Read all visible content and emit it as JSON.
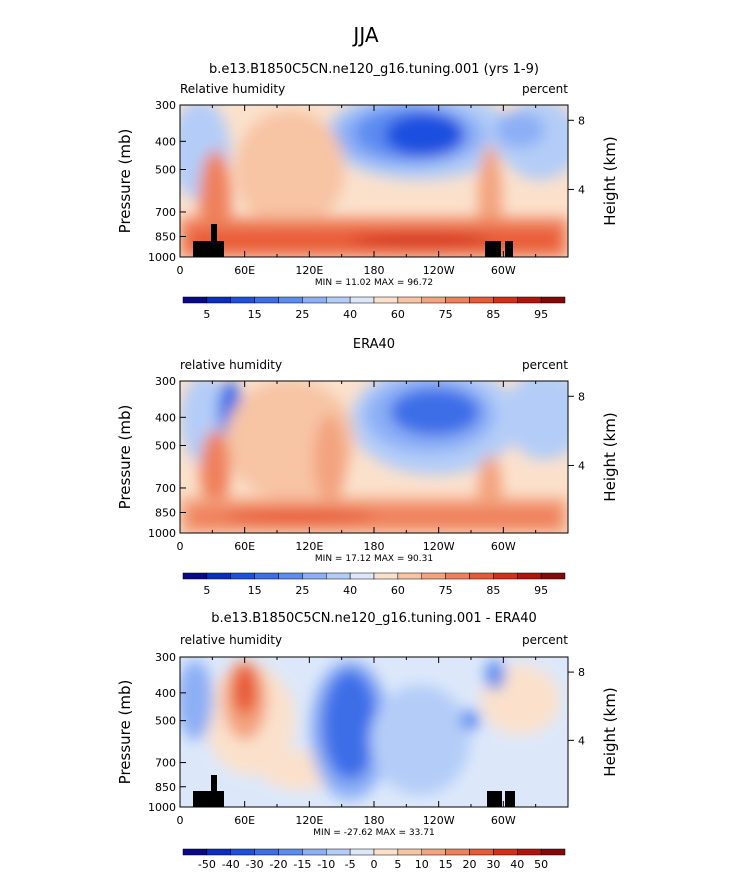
{
  "page_title": "JJA",
  "colors": {
    "seq": [
      "#08088a",
      "#0a2fc0",
      "#1e50e0",
      "#3c6ee8",
      "#5c8cf0",
      "#8caff5",
      "#b4cdf8",
      "#dce8fa",
      "#fbe1cc",
      "#f7c4a4",
      "#f3a37e",
      "#ef805c",
      "#e85a36",
      "#d43018",
      "#b0140a",
      "#820808"
    ],
    "diff": [
      "#08088a",
      "#0a2fc0",
      "#1e50e0",
      "#3c6ee8",
      "#5c8cf0",
      "#8caff5",
      "#b4cdf8",
      "#dce8fa",
      "#fbe1cc",
      "#f7c4a4",
      "#f3a37e",
      "#ef805c",
      "#e85a36",
      "#d43018",
      "#b0140a",
      "#820808"
    ]
  },
  "chart_data": [
    {
      "type": "heatmap",
      "title": "b.e13.B1850C5CN.ne120_g16.tuning.001 (yrs 1-9)",
      "left_label": "Relative humidity",
      "right_label": "percent",
      "ylabel": "Pressure (mb)",
      "y2label": "Height (km)",
      "x_ticks": [
        "0",
        "60E",
        "120E",
        "180",
        "120W",
        "60W"
      ],
      "y_ticks": [
        "300",
        "400",
        "500",
        "700",
        "850",
        "1000"
      ],
      "y2_ticks": [
        "8",
        "4"
      ],
      "stats": "MIN =   11.02   MAX =   96.72",
      "colorbar": [
        "5",
        "15",
        "25",
        "40",
        "60",
        "75",
        "85",
        "95"
      ],
      "palette": "seq",
      "has_terrain": true
    },
    {
      "type": "heatmap",
      "title": "ERA40",
      "left_label": "relative humidity",
      "right_label": "percent",
      "ylabel": "Pressure (mb)",
      "y2label": "Height (km)",
      "x_ticks": [
        "0",
        "60E",
        "120E",
        "180",
        "120W",
        "60W"
      ],
      "y_ticks": [
        "300",
        "400",
        "500",
        "700",
        "850",
        "1000"
      ],
      "y2_ticks": [
        "8",
        "4"
      ],
      "stats": "MIN =   17.12   MAX =   90.31",
      "colorbar": [
        "5",
        "15",
        "25",
        "40",
        "60",
        "75",
        "85",
        "95"
      ],
      "palette": "seq",
      "has_terrain": false
    },
    {
      "type": "heatmap",
      "title": "b.e13.B1850C5CN.ne120_g16.tuning.001 - ERA40",
      "left_label": "relative humidity",
      "right_label": "percent",
      "ylabel": "Pressure (mb)",
      "y2label": "Height (km)",
      "x_ticks": [
        "0",
        "60E",
        "120E",
        "180",
        "120W",
        "60W"
      ],
      "y_ticks": [
        "300",
        "400",
        "500",
        "700",
        "850",
        "1000"
      ],
      "y2_ticks": [
        "8",
        "4"
      ],
      "stats": "MIN = -27.62   MAX =   33.71",
      "colorbar": [
        "-50",
        "-40",
        "-30",
        "-20",
        "-15",
        "-10",
        "-5",
        "0",
        "5",
        "10",
        "15",
        "20",
        "30",
        "40",
        "50"
      ],
      "palette": "diff",
      "has_terrain": true
    }
  ]
}
